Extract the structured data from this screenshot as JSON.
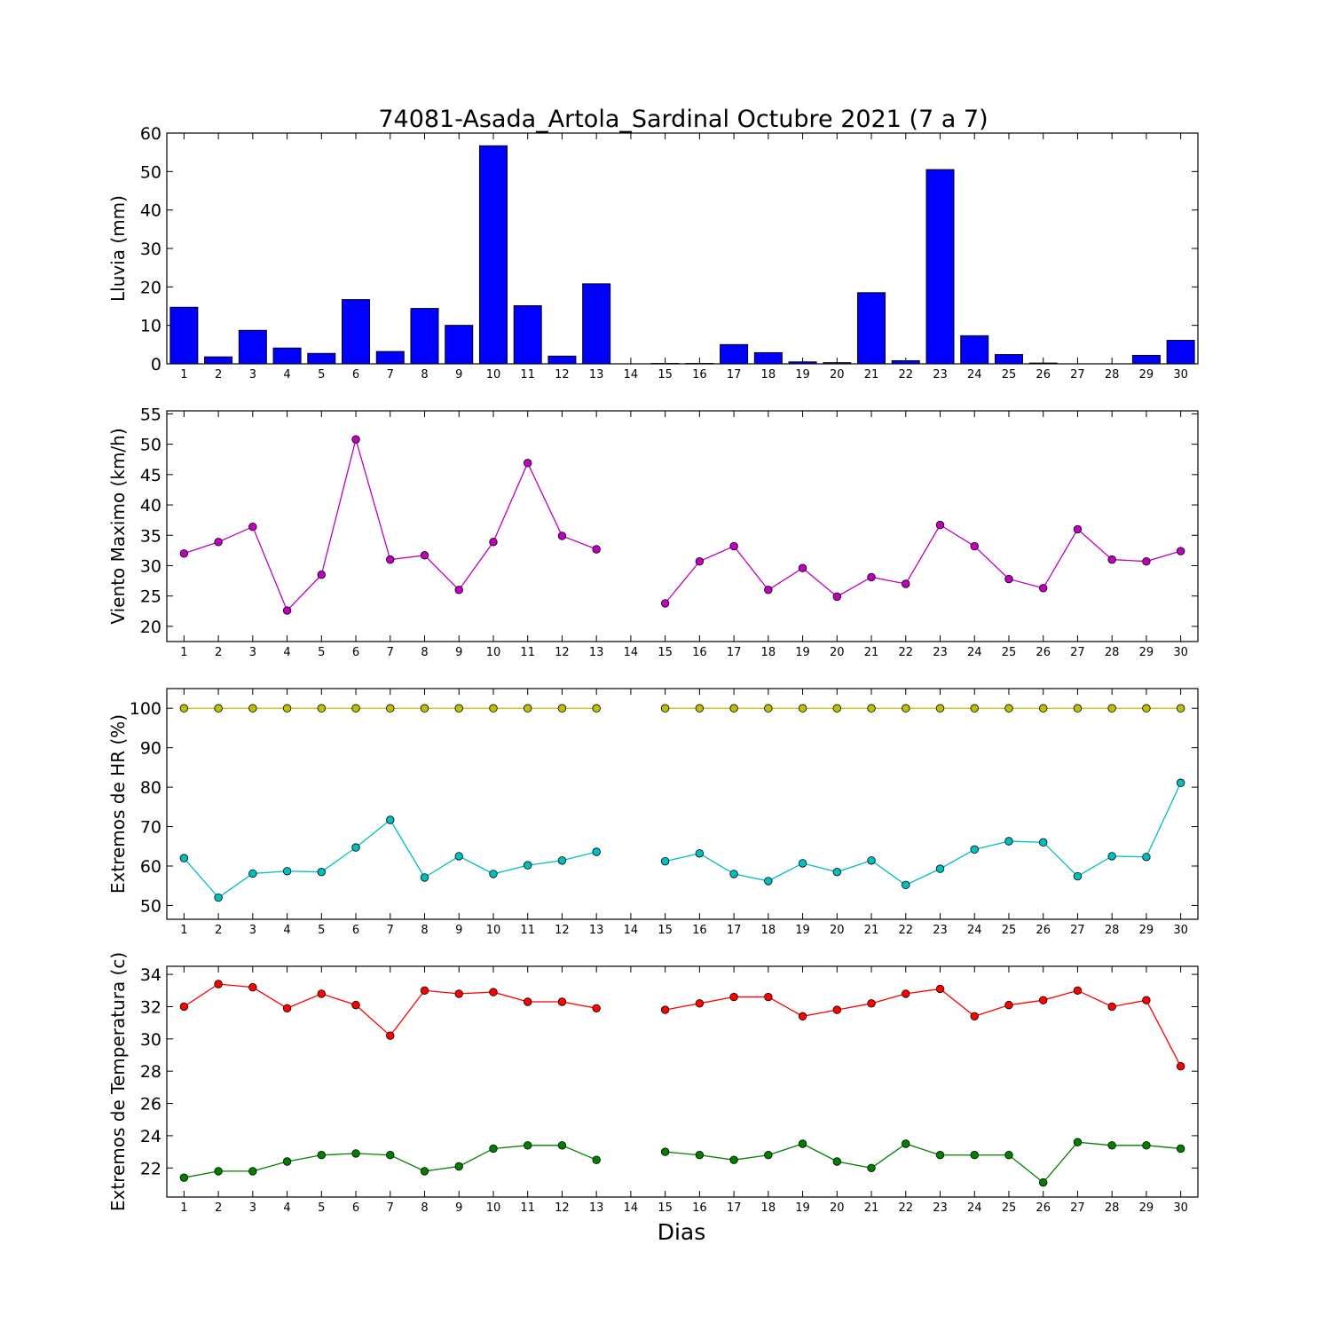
{
  "figure": {
    "title": "74081-Asada_Artola_Sardinal Octubre 2021  (7 a 7)",
    "xlabel": "Dias"
  },
  "chart_data": [
    {
      "type": "bar",
      "ylabel": "Lluvia (mm)",
      "categories": [
        "1",
        "2",
        "3",
        "4",
        "5",
        "6",
        "7",
        "8",
        "9",
        "10",
        "11",
        "12",
        "13",
        "14",
        "15",
        "16",
        "17",
        "18",
        "19",
        "20",
        "21",
        "22",
        "23",
        "24",
        "25",
        "26",
        "27",
        "28",
        "29",
        "30"
      ],
      "ylim": [
        0,
        60
      ],
      "yticks": [
        0,
        10,
        20,
        30,
        40,
        50,
        60
      ],
      "grid": false,
      "series": [
        {
          "color": "#0000ff",
          "values": [
            14.7,
            1.8,
            8.7,
            4.1,
            2.7,
            16.7,
            3.2,
            14.4,
            10.0,
            56.7,
            15.1,
            2.0,
            20.8,
            0,
            0.1,
            0.1,
            5.0,
            2.9,
            0.5,
            0.3,
            18.5,
            0.8,
            50.5,
            7.3,
            2.4,
            0.2,
            0,
            0,
            2.2,
            6.1
          ]
        }
      ]
    },
    {
      "type": "line",
      "ylabel": "Viento Maximo (km/h)",
      "categories": [
        "1",
        "2",
        "3",
        "4",
        "5",
        "6",
        "7",
        "8",
        "9",
        "10",
        "11",
        "12",
        "13",
        "14",
        "15",
        "16",
        "17",
        "18",
        "19",
        "20",
        "21",
        "22",
        "23",
        "24",
        "25",
        "26",
        "27",
        "28",
        "29",
        "30"
      ],
      "ylim": [
        17.5,
        55.5
      ],
      "yticks": [
        20,
        25,
        30,
        35,
        40,
        45,
        50,
        55
      ],
      "grid": false,
      "series": [
        {
          "color": "#bf00bf",
          "values": [
            32.0,
            33.9,
            36.4,
            22.6,
            28.5,
            50.8,
            31.0,
            31.7,
            26.0,
            33.9,
            46.9,
            34.9,
            32.7,
            null,
            23.8,
            30.7,
            33.2,
            26.0,
            29.6,
            24.9,
            28.1,
            27.0,
            36.7,
            33.2,
            27.8,
            26.3,
            36.0,
            31.0,
            30.7,
            32.4
          ]
        }
      ]
    },
    {
      "type": "line",
      "ylabel": "Extremos de HR (%)",
      "categories": [
        "1",
        "2",
        "3",
        "4",
        "5",
        "6",
        "7",
        "8",
        "9",
        "10",
        "11",
        "12",
        "13",
        "14",
        "15",
        "16",
        "17",
        "18",
        "19",
        "20",
        "21",
        "22",
        "23",
        "24",
        "25",
        "26",
        "27",
        "28",
        "29",
        "30"
      ],
      "ylim": [
        46.5,
        105
      ],
      "yticks": [
        50,
        60,
        70,
        80,
        90,
        100
      ],
      "grid": false,
      "series": [
        {
          "color": "#bfbf00",
          "values": [
            100,
            100,
            100,
            100,
            100,
            100,
            100,
            100,
            100,
            100,
            100,
            100,
            100,
            null,
            100,
            100,
            100,
            100,
            100,
            100,
            100,
            100,
            100,
            100,
            100,
            100,
            100,
            100,
            100,
            100
          ]
        },
        {
          "color": "#00bfbf",
          "values": [
            62.0,
            52.0,
            58.1,
            58.7,
            58.5,
            64.7,
            71.7,
            57.1,
            62.5,
            58.0,
            60.2,
            61.4,
            63.6,
            null,
            61.2,
            63.2,
            58.0,
            56.2,
            60.7,
            58.5,
            61.4,
            55.2,
            59.3,
            64.2,
            66.3,
            66.0,
            57.4,
            62.5,
            62.3,
            81.1
          ]
        }
      ]
    },
    {
      "type": "line",
      "ylabel": "Extremos de Temperatura (c)",
      "categories": [
        "1",
        "2",
        "3",
        "4",
        "5",
        "6",
        "7",
        "8",
        "9",
        "10",
        "11",
        "12",
        "13",
        "14",
        "15",
        "16",
        "17",
        "18",
        "19",
        "20",
        "21",
        "22",
        "23",
        "24",
        "25",
        "26",
        "27",
        "28",
        "29",
        "30"
      ],
      "ylim": [
        20.2,
        34.5
      ],
      "yticks": [
        22,
        24,
        26,
        28,
        30,
        32,
        34
      ],
      "grid": false,
      "series": [
        {
          "color": "#ff0000",
          "values": [
            32.0,
            33.4,
            33.2,
            31.9,
            32.8,
            32.1,
            30.2,
            33.0,
            32.8,
            32.9,
            32.3,
            32.3,
            31.9,
            null,
            31.8,
            32.2,
            32.6,
            32.6,
            31.4,
            31.8,
            32.2,
            32.8,
            33.1,
            31.4,
            32.1,
            32.4,
            33.0,
            32.0,
            32.4,
            28.3
          ]
        },
        {
          "color": "#007f00",
          "values": [
            21.4,
            21.8,
            21.8,
            22.4,
            22.8,
            22.9,
            22.8,
            21.8,
            22.1,
            23.2,
            23.4,
            23.4,
            22.5,
            null,
            23.0,
            22.8,
            22.5,
            22.8,
            23.5,
            22.4,
            22.0,
            23.5,
            22.8,
            22.8,
            22.8,
            21.1,
            23.6,
            23.4,
            23.4,
            23.2
          ]
        }
      ]
    }
  ]
}
